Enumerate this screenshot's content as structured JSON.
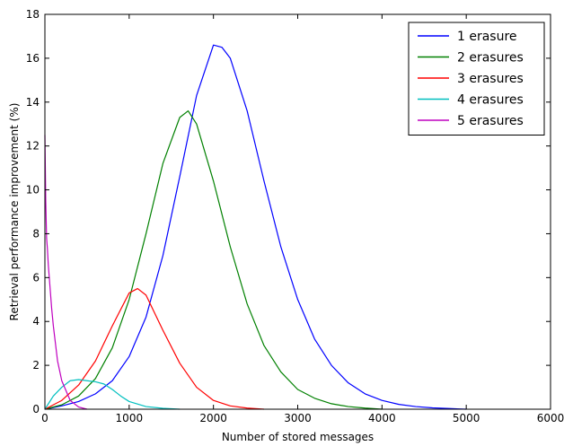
{
  "chart_data": {
    "type": "line",
    "xlabel": "Number of stored messages",
    "ylabel": "Retrieval performance improvement (%)",
    "xlim": [
      0,
      6000
    ],
    "ylim": [
      0,
      18
    ],
    "xticks": [
      "0",
      "1000",
      "2000",
      "3000",
      "4000",
      "5000",
      "6000"
    ],
    "yticks": [
      "0",
      "2",
      "4",
      "6",
      "8",
      "10",
      "12",
      "14",
      "16",
      "18"
    ],
    "grid": false,
    "legend_position": "top-right",
    "series": [
      {
        "name": "1 erasure",
        "color": "#0000ff",
        "x": [
          0,
          200,
          400,
          600,
          800,
          1000,
          1200,
          1400,
          1600,
          1800,
          2000,
          2100,
          2200,
          2400,
          2600,
          2800,
          3000,
          3200,
          3400,
          3600,
          3800,
          4000,
          4200,
          4400,
          4600,
          4800,
          5000
        ],
        "y": [
          0,
          0.15,
          0.35,
          0.7,
          1.3,
          2.4,
          4.2,
          7.0,
          10.6,
          14.3,
          16.6,
          16.5,
          16.0,
          13.6,
          10.4,
          7.4,
          5.0,
          3.2,
          2.0,
          1.2,
          0.7,
          0.4,
          0.22,
          0.12,
          0.06,
          0.03,
          0.0
        ]
      },
      {
        "name": "2 erasures",
        "color": "#008000",
        "x": [
          0,
          200,
          400,
          600,
          800,
          1000,
          1200,
          1400,
          1600,
          1700,
          1800,
          2000,
          2200,
          2400,
          2600,
          2800,
          3000,
          3200,
          3400,
          3600,
          3800,
          4000
        ],
        "y": [
          0,
          0.2,
          0.6,
          1.4,
          2.8,
          5.0,
          8.0,
          11.2,
          13.3,
          13.6,
          13.0,
          10.4,
          7.4,
          4.8,
          2.9,
          1.7,
          0.9,
          0.5,
          0.25,
          0.12,
          0.05,
          0.0
        ]
      },
      {
        "name": "3 erasures",
        "color": "#ff0000",
        "x": [
          0,
          200,
          400,
          600,
          800,
          1000,
          1100,
          1200,
          1400,
          1600,
          1800,
          2000,
          2200,
          2400,
          2600
        ],
        "y": [
          0,
          0.4,
          1.1,
          2.2,
          3.8,
          5.3,
          5.5,
          5.2,
          3.6,
          2.1,
          1.0,
          0.4,
          0.15,
          0.05,
          0.0
        ]
      },
      {
        "name": "4 erasures",
        "color": "#00bfbf",
        "x": [
          0,
          100,
          200,
          300,
          400,
          500,
          600,
          700,
          800,
          900,
          1000,
          1200,
          1400,
          1600
        ],
        "y": [
          0,
          0.6,
          1.0,
          1.3,
          1.35,
          1.3,
          1.25,
          1.15,
          0.9,
          0.6,
          0.35,
          0.12,
          0.04,
          0.0
        ]
      },
      {
        "name": "5 erasures",
        "color": "#bf00bf",
        "x": [
          0,
          10,
          20,
          30,
          40,
          60,
          80,
          100,
          150,
          200,
          300,
          400,
          500
        ],
        "y": [
          12.5,
          9.5,
          7.8,
          7.3,
          6.6,
          5.6,
          4.6,
          3.8,
          2.2,
          1.3,
          0.4,
          0.1,
          0.0
        ]
      }
    ]
  }
}
